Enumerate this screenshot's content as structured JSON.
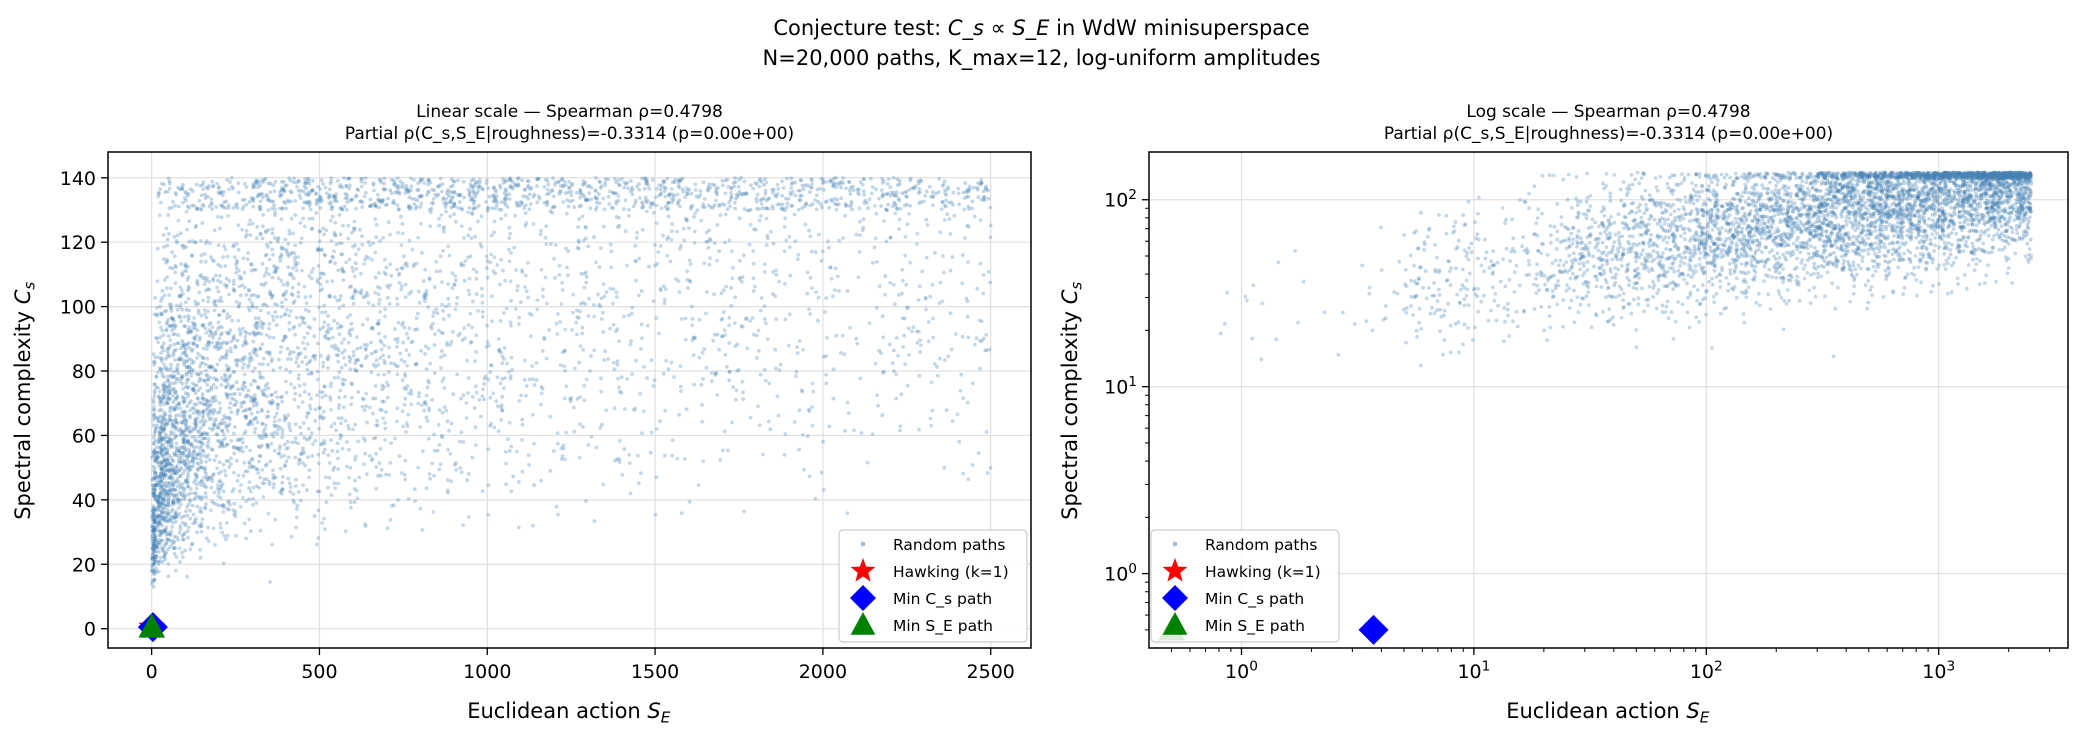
{
  "figure": {
    "title_line1_prefix": "Conjecture test: ",
    "title_line1_math": "C_s ∝ S_E",
    "title_line1_suffix": " in WdW minisuperspace",
    "title_line2": "N=20,000 paths, K_max=12, log-uniform amplitudes"
  },
  "colors": {
    "random": "#4682b4",
    "hawking": "#ff0000",
    "min_cs": "#0000ff",
    "min_se": "#008000",
    "grid": "#e0e0e0",
    "axis": "#000000"
  },
  "chart_data": [
    {
      "type": "scatter",
      "title_line1": "Linear scale — Spearman ρ=0.4798",
      "title_line2": "Partial ρ(C_s,S_E|roughness)=-0.3314 (p=0.00e+00)",
      "xlabel": "Euclidean action S_E",
      "ylabel": "Spectral complexity C_s",
      "xscale": "linear",
      "yscale": "linear",
      "xlim": [
        -130,
        2620
      ],
      "ylim": [
        -6,
        148
      ],
      "xticks": [
        0,
        500,
        1000,
        1500,
        2000,
        2500
      ],
      "xtick_labels": [
        "0",
        "500",
        "1000",
        "1500",
        "2000",
        "2500"
      ],
      "yticks": [
        0,
        20,
        40,
        60,
        80,
        100,
        120,
        140
      ],
      "ytick_labels": [
        "0",
        "20",
        "40",
        "60",
        "80",
        "100",
        "120",
        "140"
      ],
      "grid": true,
      "legend_position": "lower-right",
      "legend": [
        "Random paths",
        "Hawking (k=1)",
        "Min C_s path",
        "Min S_E path"
      ],
      "series": [
        {
          "name": "Random paths",
          "marker": "dot",
          "n": 20000,
          "x_range": [
            0.5,
            2500
          ],
          "y_range": [
            10,
            140
          ],
          "spearman_rho": 0.4798
        },
        {
          "name": "Hawking (k=1)",
          "marker": "star",
          "points": [
            [
              0,
              0.5
            ]
          ]
        },
        {
          "name": "Min C_s path",
          "marker": "diamond",
          "points": [
            [
              3.7,
              0.5
            ]
          ]
        },
        {
          "name": "Min S_E path",
          "marker": "triangle",
          "points": [
            [
              0.5,
              0.5
            ]
          ]
        }
      ]
    },
    {
      "type": "scatter",
      "title_line1": "Log scale — Spearman ρ=0.4798",
      "title_line2": "Partial ρ(C_s,S_E|roughness)=-0.3314 (p=0.00e+00)",
      "xlabel": "Euclidean action S_E",
      "ylabel": "Spectral complexity C_s",
      "xscale": "log",
      "yscale": "log",
      "xlim": [
        0.4,
        3600
      ],
      "ylim": [
        0.4,
        180
      ],
      "xticks": [
        1,
        10,
        100,
        1000
      ],
      "xtick_labels": [
        "10^0",
        "10^1",
        "10^2",
        "10^3"
      ],
      "yticks": [
        1,
        10,
        100
      ],
      "ytick_labels": [
        "10^0",
        "10^1",
        "10^2"
      ],
      "grid": true,
      "legend_position": "lower-left",
      "legend": [
        "Random paths",
        "Hawking (k=1)",
        "Min C_s path",
        "Min S_E path"
      ],
      "series": [
        {
          "name": "Random paths",
          "marker": "dot",
          "n": 20000,
          "x_range": [
            0.5,
            2500
          ],
          "y_range": [
            10,
            140
          ],
          "spearman_rho": 0.4798
        },
        {
          "name": "Hawking (k=1)",
          "marker": "star",
          "points": [
            [
              0,
              0.5
            ]
          ]
        },
        {
          "name": "Min C_s path",
          "marker": "diamond",
          "points": [
            [
              3.7,
              0.5
            ]
          ]
        },
        {
          "name": "Min S_E path",
          "marker": "triangle",
          "points": [
            [
              0.5,
              0.5
            ]
          ]
        }
      ]
    }
  ]
}
